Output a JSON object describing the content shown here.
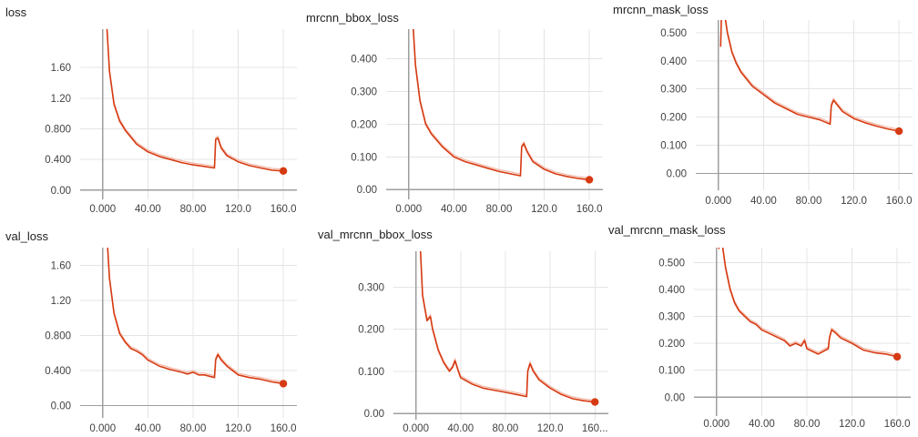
{
  "chart_data": [
    {
      "type": "line",
      "title": "loss",
      "xticks": [
        "0.000",
        "40.00",
        "80.00",
        "120.0",
        "160.0"
      ],
      "yticks": [
        "1.60",
        "1.20",
        "0.800",
        "0.400",
        "0.00"
      ],
      "xlim": [
        -20,
        172
      ],
      "ylim": [
        -0.12,
        2.1
      ],
      "series": [
        {
          "x": [
            3,
            6,
            10,
            15,
            20,
            30,
            40,
            50,
            60,
            70,
            80,
            90,
            99,
            100,
            102,
            105,
            110,
            120,
            130,
            140,
            150,
            160
          ],
          "y": [
            2.3,
            1.55,
            1.12,
            0.9,
            0.78,
            0.6,
            0.5,
            0.44,
            0.4,
            0.36,
            0.33,
            0.31,
            0.29,
            0.66,
            0.68,
            0.55,
            0.45,
            0.37,
            0.32,
            0.29,
            0.26,
            0.25
          ]
        }
      ]
    },
    {
      "type": "line",
      "title": "mrcnn_bbox_loss",
      "xticks": [
        "0.000",
        "40.00",
        "80.00",
        "120.0",
        "160.0"
      ],
      "yticks": [
        "0.400",
        "0.300",
        "0.200",
        "0.100",
        "0.00"
      ],
      "xlim": [
        -20,
        172
      ],
      "ylim": [
        -0.03,
        0.49
      ],
      "series": [
        {
          "x": [
            3,
            6,
            10,
            15,
            20,
            30,
            40,
            50,
            60,
            70,
            80,
            90,
            99,
            100,
            102,
            105,
            110,
            120,
            130,
            140,
            150,
            160
          ],
          "y": [
            0.55,
            0.38,
            0.27,
            0.2,
            0.17,
            0.13,
            0.1,
            0.085,
            0.075,
            0.065,
            0.055,
            0.048,
            0.042,
            0.13,
            0.14,
            0.115,
            0.085,
            0.062,
            0.048,
            0.04,
            0.034,
            0.03
          ]
        }
      ]
    },
    {
      "type": "line",
      "title": "mrcnn_mask_loss",
      "xticks": [
        "0.000",
        "40.00",
        "80.00",
        "120.0",
        "160.0"
      ],
      "yticks": [
        "0.500",
        "0.400",
        "0.300",
        "0.200",
        "0.100",
        "0.00"
      ],
      "xlim": [
        -20,
        172
      ],
      "ylim": [
        -0.06,
        0.545
      ],
      "series": [
        {
          "x": [
            2,
            3,
            5,
            8,
            12,
            16,
            20,
            30,
            40,
            50,
            60,
            70,
            80,
            90,
            99,
            100,
            102,
            105,
            110,
            120,
            130,
            140,
            150,
            160
          ],
          "y": [
            0.45,
            0.6,
            0.58,
            0.5,
            0.43,
            0.39,
            0.36,
            0.31,
            0.28,
            0.25,
            0.23,
            0.21,
            0.2,
            0.19,
            0.175,
            0.24,
            0.26,
            0.245,
            0.22,
            0.195,
            0.18,
            0.168,
            0.158,
            0.15
          ]
        }
      ]
    },
    {
      "type": "line",
      "title": "val_loss",
      "xticks": [
        "0.000",
        "40.00",
        "80.00",
        "120.0",
        "160.0"
      ],
      "yticks": [
        "1.60",
        "1.20",
        "0.800",
        "0.400",
        "0.00"
      ],
      "xlim": [
        -20,
        172
      ],
      "ylim": [
        -0.14,
        1.8
      ],
      "series": [
        {
          "x": [
            3,
            6,
            10,
            15,
            20,
            25,
            30,
            35,
            40,
            50,
            60,
            70,
            75,
            80,
            85,
            90,
            99,
            100,
            102,
            105,
            110,
            120,
            130,
            140,
            150,
            160
          ],
          "y": [
            2.1,
            1.45,
            1.05,
            0.82,
            0.72,
            0.65,
            0.62,
            0.58,
            0.52,
            0.45,
            0.41,
            0.38,
            0.36,
            0.38,
            0.35,
            0.35,
            0.32,
            0.52,
            0.58,
            0.52,
            0.45,
            0.35,
            0.32,
            0.3,
            0.27,
            0.25
          ]
        }
      ]
    },
    {
      "type": "line",
      "title": "val_mrcnn_bbox_loss",
      "xticks": [
        "0.000",
        "40.00",
        "80.00",
        "120.0",
        "160..."
      ],
      "yticks": [
        "0.300",
        "0.200",
        "0.100",
        "0.00"
      ],
      "xlim": [
        -20,
        172
      ],
      "ylim": [
        -0.015,
        0.385
      ],
      "series": [
        {
          "x": [
            3,
            6,
            10,
            13,
            15,
            20,
            25,
            30,
            33,
            35,
            38,
            40,
            50,
            60,
            70,
            80,
            90,
            99,
            100,
            102,
            105,
            110,
            120,
            130,
            140,
            150,
            160
          ],
          "y": [
            0.45,
            0.28,
            0.22,
            0.23,
            0.2,
            0.15,
            0.12,
            0.1,
            0.11,
            0.125,
            0.1,
            0.085,
            0.07,
            0.06,
            0.055,
            0.05,
            0.045,
            0.04,
            0.1,
            0.118,
            0.1,
            0.08,
            0.06,
            0.045,
            0.035,
            0.03,
            0.027
          ]
        }
      ]
    },
    {
      "type": "line",
      "title": "val_mrcnn_mask_loss",
      "xticks": [
        "0.000",
        "40.00",
        "80.00",
        "120.0",
        "160.0"
      ],
      "yticks": [
        "0.500",
        "0.400",
        "0.300",
        "0.200",
        "0.100",
        "0.00"
      ],
      "xlim": [
        -20,
        172
      ],
      "ylim": [
        -0.07,
        0.555
      ],
      "series": [
        {
          "x": [
            2,
            3,
            5,
            8,
            12,
            16,
            20,
            25,
            30,
            35,
            40,
            50,
            60,
            65,
            70,
            75,
            78,
            80,
            85,
            90,
            99,
            100,
            102,
            105,
            110,
            120,
            130,
            140,
            150,
            160
          ],
          "y": [
            0.55,
            0.62,
            0.57,
            0.48,
            0.4,
            0.35,
            0.32,
            0.3,
            0.28,
            0.27,
            0.25,
            0.23,
            0.21,
            0.19,
            0.2,
            0.19,
            0.21,
            0.18,
            0.17,
            0.16,
            0.18,
            0.22,
            0.25,
            0.24,
            0.22,
            0.2,
            0.175,
            0.165,
            0.16,
            0.15
          ]
        }
      ]
    }
  ]
}
